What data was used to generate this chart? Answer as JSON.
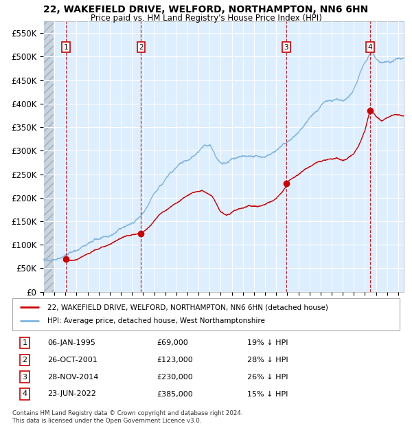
{
  "title": "22, WAKEFIELD DRIVE, WELFORD, NORTHAMPTON, NN6 6HN",
  "subtitle": "Price paid vs. HM Land Registry's House Price Index (HPI)",
  "ylim": [
    0,
    575000
  ],
  "yticks": [
    0,
    50000,
    100000,
    150000,
    200000,
    250000,
    300000,
    350000,
    400000,
    450000,
    500000,
    550000
  ],
  "ytick_labels": [
    "£0",
    "£50K",
    "£100K",
    "£150K",
    "£200K",
    "£250K",
    "£300K",
    "£350K",
    "£400K",
    "£450K",
    "£500K",
    "£550K"
  ],
  "background_color": "#ffffff",
  "plot_bg_color": "#ddeeff",
  "grid_color": "#ffffff",
  "sale_color": "#cc0000",
  "hpi_color": "#7fb4df",
  "transactions": [
    {
      "num": 1,
      "date": "06-JAN-1995",
      "price": 69000,
      "pct": "19%",
      "x_year": 1995.02
    },
    {
      "num": 2,
      "date": "26-OCT-2001",
      "price": 123000,
      "pct": "28%",
      "x_year": 2001.82
    },
    {
      "num": 3,
      "date": "28-NOV-2014",
      "price": 230000,
      "pct": "26%",
      "x_year": 2014.91
    },
    {
      "num": 4,
      "date": "23-JUN-2022",
      "price": 385000,
      "pct": "15%",
      "x_year": 2022.48
    }
  ],
  "legend_label_sale": "22, WAKEFIELD DRIVE, WELFORD, NORTHAMPTON, NN6 6HN (detached house)",
  "legend_label_hpi": "HPI: Average price, detached house, West Northamptonshire",
  "footer": "Contains HM Land Registry data © Crown copyright and database right 2024.\nThis data is licensed under the Open Government Licence v3.0.",
  "xmin": 1993.0,
  "xmax": 2025.5,
  "hpi_years": [
    1993,
    1993.5,
    1994,
    1994.5,
    1995,
    1995.5,
    1996,
    1996.5,
    1997,
    1997.5,
    1998,
    1998.5,
    1999,
    1999.5,
    2000,
    2000.5,
    2001,
    2001.5,
    2002,
    2002.5,
    2003,
    2003.5,
    2004,
    2004.5,
    2005,
    2005.5,
    2006,
    2006.5,
    2007,
    2007.5,
    2008,
    2008.25,
    2008.5,
    2008.75,
    2009,
    2009.25,
    2009.5,
    2009.75,
    2010,
    2010.5,
    2011,
    2011.5,
    2012,
    2012.5,
    2013,
    2013.5,
    2014,
    2014.5,
    2015,
    2015.5,
    2016,
    2016.5,
    2017,
    2017.5,
    2018,
    2018.5,
    2019,
    2019.5,
    2020,
    2020.5,
    2021,
    2021.5,
    2022,
    2022.25,
    2022.5,
    2022.75,
    2023,
    2023.25,
    2023.5,
    2023.75,
    2024,
    2024.25,
    2024.5,
    2024.75,
    2025
  ],
  "hpi_values": [
    68000,
    70000,
    72000,
    76000,
    80000,
    84000,
    89000,
    94000,
    100000,
    105000,
    110000,
    116000,
    122000,
    128000,
    136000,
    143000,
    150000,
    158000,
    168000,
    185000,
    200000,
    215000,
    228000,
    240000,
    250000,
    256000,
    261000,
    268000,
    278000,
    291000,
    295000,
    283000,
    268000,
    255000,
    248000,
    245000,
    243000,
    248000,
    255000,
    260000,
    258000,
    255000,
    252000,
    253000,
    255000,
    260000,
    268000,
    276000,
    285000,
    295000,
    308000,
    322000,
    338000,
    350000,
    362000,
    370000,
    375000,
    378000,
    372000,
    378000,
    395000,
    425000,
    452000,
    460000,
    468000,
    462000,
    452000,
    450000,
    448000,
    447000,
    449000,
    451000,
    454000,
    456000,
    458000
  ],
  "sale_years": [
    1995.02,
    1995.3,
    1995.6,
    1996,
    1996.5,
    1997,
    1997.5,
    1998,
    1998.5,
    1999,
    1999.5,
    2000,
    2000.5,
    2001,
    2001.5,
    2001.82,
    2002,
    2002.5,
    2003,
    2003.5,
    2004,
    2004.5,
    2005,
    2005.5,
    2006,
    2006.5,
    2007,
    2007.25,
    2007.5,
    2007.75,
    2008,
    2008.25,
    2008.5,
    2008.75,
    2009,
    2009.25,
    2009.5,
    2009.75,
    2010,
    2010.25,
    2010.5,
    2010.75,
    2011,
    2011.5,
    2012,
    2012.5,
    2013,
    2013.5,
    2014,
    2014.5,
    2014.91,
    2015,
    2015.5,
    2016,
    2016.5,
    2017,
    2017.5,
    2018,
    2018.5,
    2019,
    2019.5,
    2020,
    2020.5,
    2021,
    2021.5,
    2022,
    2022.25,
    2022.48,
    2022.75,
    2023,
    2023.5,
    2024,
    2024.5,
    2025
  ],
  "sale_values": [
    69000,
    69500,
    70500,
    72000,
    76000,
    82000,
    88000,
    94000,
    100000,
    107000,
    113000,
    118000,
    122000,
    124000,
    123500,
    123000,
    128000,
    140000,
    155000,
    168000,
    178000,
    188000,
    195000,
    202000,
    208000,
    212000,
    216000,
    218000,
    215000,
    212000,
    208000,
    202000,
    192000,
    182000,
    172000,
    168000,
    165000,
    168000,
    172000,
    176000,
    178000,
    180000,
    182000,
    185000,
    184000,
    186000,
    190000,
    196000,
    202000,
    215000,
    230000,
    238000,
    245000,
    252000,
    260000,
    268000,
    274000,
    278000,
    280000,
    282000,
    284000,
    278000,
    282000,
    290000,
    310000,
    340000,
    365000,
    385000,
    378000,
    370000,
    362000,
    368000,
    372000,
    375000
  ]
}
